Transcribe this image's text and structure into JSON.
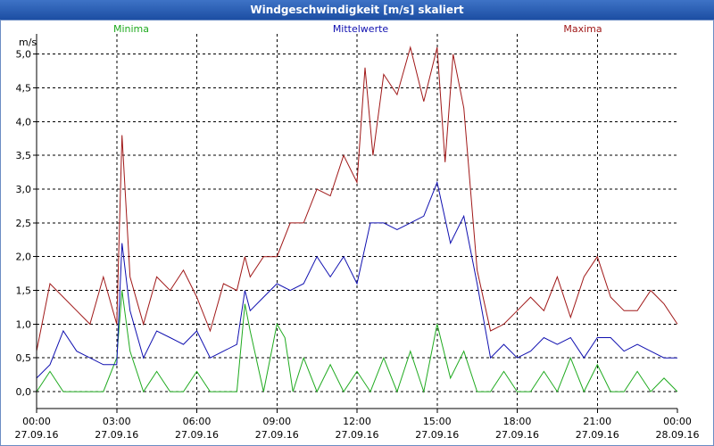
{
  "window": {
    "title": "Windgeschwindigkeit [m/s] skaliert"
  },
  "chart_data": {
    "type": "line",
    "title": "Windgeschwindigkeit [m/s] skaliert",
    "ylabel": "m/s",
    "ylim": [
      -0.25,
      5.3
    ],
    "xlim_hours": [
      0,
      24
    ],
    "yticks": [
      "0,0",
      "0,5",
      "1,0",
      "1,5",
      "2,0",
      "2,5",
      "3,0",
      "3,5",
      "4,0",
      "4,5",
      "5,0"
    ],
    "ytick_values": [
      0,
      0.5,
      1,
      1.5,
      2,
      2.5,
      3,
      3.5,
      4,
      4.5,
      5
    ],
    "xticks": [
      {
        "time": "00:00",
        "date": "27.09.16"
      },
      {
        "time": "03:00",
        "date": "27.09.16"
      },
      {
        "time": "06:00",
        "date": "27.09.16"
      },
      {
        "time": "09:00",
        "date": "27.09.16"
      },
      {
        "time": "12:00",
        "date": "27.09.16"
      },
      {
        "time": "15:00",
        "date": "27.09.16"
      },
      {
        "time": "18:00",
        "date": "27.09.16"
      },
      {
        "time": "21:00",
        "date": "27.09.16"
      },
      {
        "time": "00:00",
        "date": "28.09.16"
      }
    ],
    "series": [
      {
        "name": "Minima",
        "color": "#1faa1f",
        "x_hours": [
          0,
          0.5,
          1,
          1.5,
          2,
          2.5,
          3,
          3.2,
          3.5,
          4,
          4.5,
          5,
          5.5,
          6,
          6.5,
          7,
          7.5,
          7.8,
          8,
          8.5,
          9,
          9.3,
          9.6,
          10,
          10.5,
          11,
          11.5,
          12,
          12.5,
          13,
          13.5,
          14,
          14.5,
          15,
          15.5,
          16,
          16.5,
          17,
          17.5,
          18,
          18.5,
          19,
          19.5,
          20,
          20.5,
          21,
          21.5,
          22,
          22.5,
          23,
          23.5,
          24
        ],
        "values": [
          0,
          0.3,
          0,
          0,
          0,
          0,
          0.5,
          1.5,
          0.6,
          0,
          0.3,
          0,
          0,
          0.3,
          0,
          0,
          0,
          1.3,
          0.9,
          0,
          1,
          0.8,
          0,
          0.5,
          0,
          0.4,
          0,
          0.3,
          0,
          0.5,
          0,
          0.6,
          0,
          1,
          0.2,
          0.6,
          0,
          0,
          0.3,
          0,
          0,
          0.3,
          0,
          0.5,
          0,
          0.4,
          0,
          0,
          0.3,
          0,
          0.2,
          0
        ]
      },
      {
        "name": "Mittelwerte",
        "color": "#1010b0",
        "x_hours": [
          0,
          0.5,
          1,
          1.5,
          2,
          2.5,
          3,
          3.2,
          3.5,
          4,
          4.5,
          5,
          5.5,
          6,
          6.5,
          7,
          7.5,
          7.8,
          8,
          8.5,
          9,
          9.5,
          10,
          10.5,
          11,
          11.5,
          12,
          12.5,
          13,
          13.5,
          14,
          14.5,
          15,
          15.5,
          16,
          16.5,
          17,
          17.5,
          18,
          18.5,
          19,
          19.5,
          20,
          20.5,
          21,
          21.5,
          22,
          22.5,
          23,
          23.5,
          24
        ],
        "values": [
          0.2,
          0.4,
          0.9,
          0.6,
          0.5,
          0.4,
          0.4,
          2.2,
          1.2,
          0.5,
          0.9,
          0.8,
          0.7,
          0.9,
          0.5,
          0.6,
          0.7,
          1.5,
          1.2,
          1.4,
          1.6,
          1.5,
          1.6,
          2,
          1.7,
          2,
          1.6,
          2.5,
          2.5,
          2.4,
          2.5,
          2.6,
          3.1,
          2.2,
          2.6,
          1.6,
          0.5,
          0.7,
          0.5,
          0.6,
          0.8,
          0.7,
          0.8,
          0.5,
          0.8,
          0.8,
          0.6,
          0.7,
          0.6,
          0.5,
          0.5
        ]
      },
      {
        "name": "Maxima",
        "color": "#a01818",
        "x_hours": [
          0,
          0.5,
          1,
          1.5,
          2,
          2.5,
          3,
          3.2,
          3.5,
          4,
          4.5,
          5,
          5.5,
          6,
          6.5,
          7,
          7.5,
          7.8,
          8,
          8.5,
          9,
          9.5,
          10,
          10.5,
          11,
          11.5,
          12,
          12.3,
          12.6,
          13,
          13.5,
          14,
          14.5,
          15,
          15.3,
          15.6,
          16,
          16.5,
          17,
          17.5,
          18,
          18.5,
          19,
          19.5,
          20,
          20.5,
          21,
          21.5,
          22,
          22.5,
          23,
          23.5,
          24
        ],
        "values": [
          0.6,
          1.6,
          1.4,
          1.2,
          1,
          1.7,
          1,
          3.8,
          1.7,
          1,
          1.7,
          1.5,
          1.8,
          1.4,
          0.9,
          1.6,
          1.5,
          2,
          1.7,
          2,
          2,
          2.5,
          2.5,
          3,
          2.9,
          3.5,
          3.1,
          4.8,
          3.5,
          4.7,
          4.4,
          5.1,
          4.3,
          5.1,
          3.4,
          5,
          4.2,
          1.8,
          0.9,
          1,
          1.2,
          1.4,
          1.2,
          1.7,
          1.1,
          1.7,
          2,
          1.4,
          1.2,
          1.2,
          1.5,
          1.3,
          1
        ]
      }
    ]
  }
}
